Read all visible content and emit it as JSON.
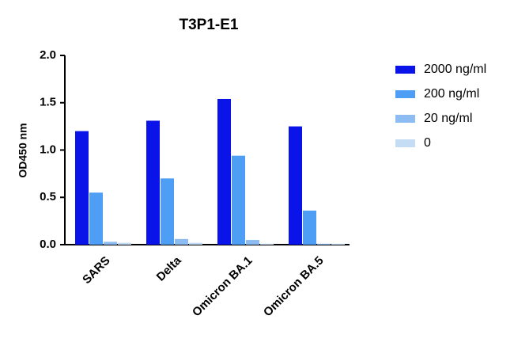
{
  "chart_data": {
    "type": "bar",
    "title": "T3P1-E1",
    "y_label": "OD450 nm",
    "categories": [
      "SARS",
      "Delta",
      "Omicron BA.1",
      "Omicron BA.5"
    ],
    "series": [
      {
        "name": "2000 ng/ml",
        "color": "#0a14e8",
        "values": [
          1.2,
          1.31,
          1.54,
          1.25
        ]
      },
      {
        "name": "200 ng/ml",
        "color": "#4f9ef5",
        "values": [
          0.55,
          0.7,
          0.94,
          0.36
        ]
      },
      {
        "name": "20 ng/ml",
        "color": "#8cbcf2",
        "values": [
          0.03,
          0.06,
          0.05,
          0.01
        ]
      },
      {
        "name": "0",
        "color": "#c5dcf5",
        "values": [
          0.02,
          0.02,
          0.01,
          0.01
        ]
      }
    ],
    "ylim": [
      0,
      2
    ],
    "yticks": [
      {
        "value": 0,
        "label": "0.0"
      },
      {
        "value": 0.5,
        "label": "0.5"
      },
      {
        "value": 1,
        "label": "1.0"
      },
      {
        "value": 1.5,
        "label": "1.5"
      },
      {
        "value": 2,
        "label": "2.0"
      }
    ],
    "legend": "right"
  }
}
